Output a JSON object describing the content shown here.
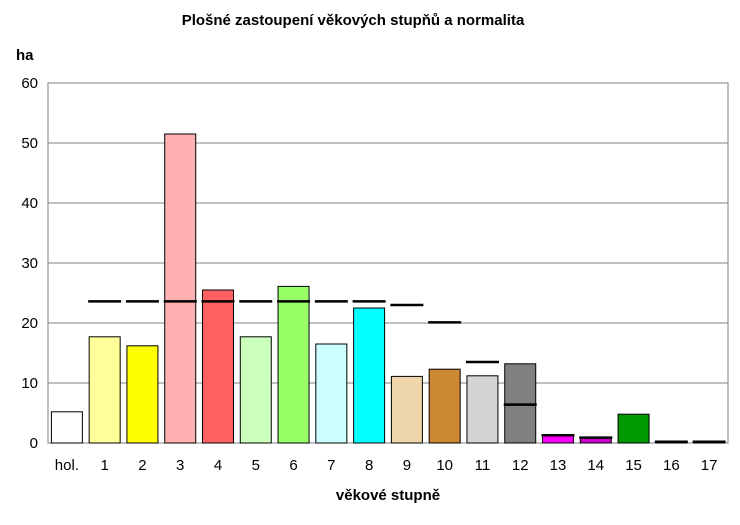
{
  "chart_data": {
    "type": "bar",
    "title": "Plošné zastoupení věkových stupňů a normalita",
    "ylabel": "ha",
    "xlabel": "věkové stupně",
    "ylim": [
      0,
      60
    ],
    "yticks": [
      "0",
      "10",
      "20",
      "30",
      "40",
      "50",
      "60"
    ],
    "grid": true,
    "categories": [
      "hol.",
      "1",
      "2",
      "3",
      "4",
      "5",
      "6",
      "7",
      "8",
      "9",
      "10",
      "11",
      "12",
      "13",
      "14",
      "15",
      "16",
      "17"
    ],
    "series": [
      {
        "values": [
          5.2,
          17.7,
          16.2,
          51.5,
          25.5,
          17.7,
          26.1,
          16.5,
          22.5,
          11.1,
          12.3,
          11.2,
          13.2,
          1.3,
          1.0,
          4.8,
          0.2,
          0.2
        ],
        "colors": [
          "#FFFFFF",
          "#FFFF99",
          "#FFFF00",
          "#FFB0B0",
          "#FF6060",
          "#CCFFBB",
          "#99FF66",
          "#CCFFFF",
          "#00FFFF",
          "#EED5AA",
          "#CC8833",
          "#D4D4D4",
          "#808080",
          "#FF00FF",
          "#CC00CC",
          "#009900",
          "#FFFFFF",
          "#FFFFFF"
        ]
      },
      {
        "values": [
          null,
          23.6,
          23.6,
          23.6,
          23.6,
          23.6,
          23.6,
          23.6,
          23.6,
          23.0,
          20.1,
          13.5,
          6.4,
          1.3,
          0.9,
          null,
          0.2,
          0.2
        ]
      }
    ]
  }
}
